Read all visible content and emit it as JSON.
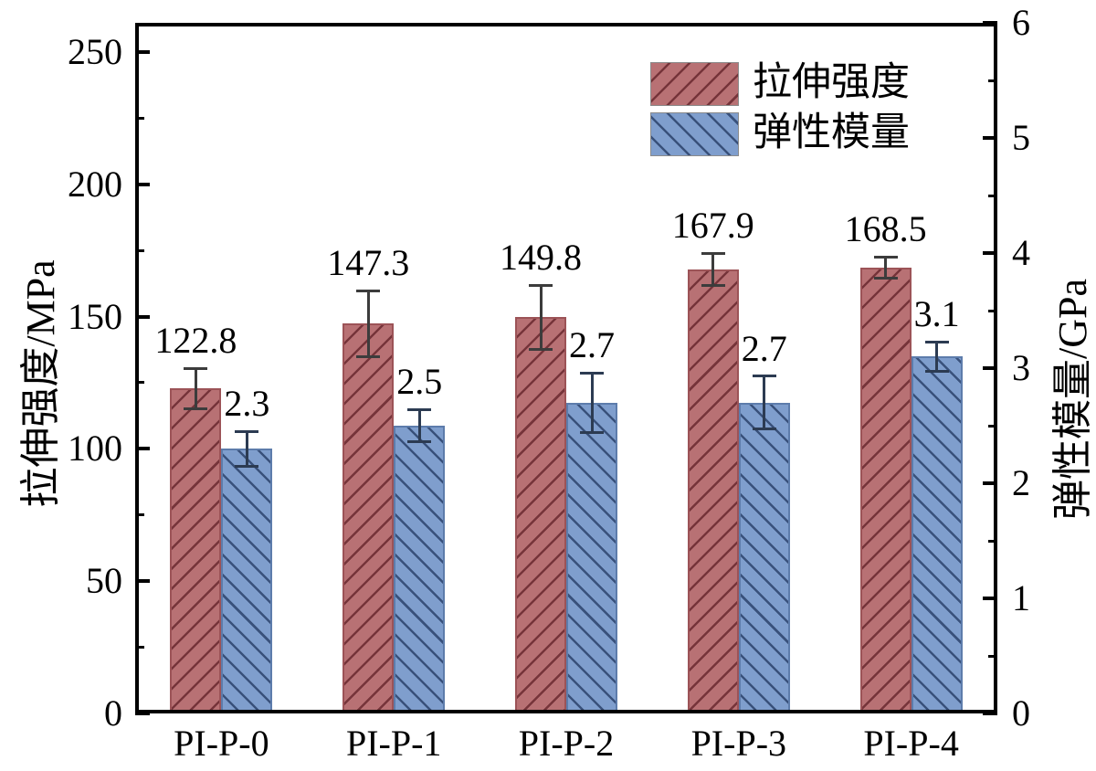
{
  "chart_data": {
    "type": "bar",
    "categories": [
      "PI-P-0",
      "PI-P-1",
      "PI-P-2",
      "PI-P-3",
      "PI-P-4"
    ],
    "series": [
      {
        "name": "拉伸强度",
        "axis": "left",
        "values": [
          122.8,
          147.3,
          149.8,
          167.9,
          168.5
        ],
        "errors": [
          7.6,
          12.4,
          12.1,
          6.0,
          4.0
        ],
        "value_labels": [
          "122.8",
          "147.3",
          "149.8",
          "167.9",
          "168.5"
        ],
        "fill": "#b87174",
        "hatch": "/",
        "hatch_color": "#76343a",
        "edge_color": "#9c5357",
        "error_color": "#3c3c3c"
      },
      {
        "name": "弹性模量",
        "axis": "right",
        "values": [
          2.3,
          2.5,
          2.7,
          2.7,
          3.1
        ],
        "errors": [
          0.15,
          0.14,
          0.26,
          0.23,
          0.13
        ],
        "value_labels": [
          "2.3",
          "2.5",
          "2.7",
          "2.7",
          "3.1"
        ],
        "fill": "#7f9ecd",
        "hatch": "\\",
        "hatch_color": "#39517b",
        "edge_color": "#5d7cab",
        "error_color": "#2c3b52"
      }
    ],
    "left_axis": {
      "label": "拉伸强度/MPa",
      "ticks": [
        0,
        50,
        100,
        150,
        200,
        250
      ],
      "minor_step": 25,
      "min": 0,
      "max": 261
    },
    "right_axis": {
      "label": "弹性模量/GPa",
      "ticks": [
        0,
        1,
        2,
        3,
        4,
        5,
        6
      ],
      "minor_step": 0.5,
      "min": 0,
      "max": 6
    },
    "legend": {
      "position": "top-right",
      "entries": [
        "拉伸强度",
        "弹性模量"
      ]
    },
    "grid": false,
    "axis_color": "#000000",
    "background": "#ffffff"
  }
}
